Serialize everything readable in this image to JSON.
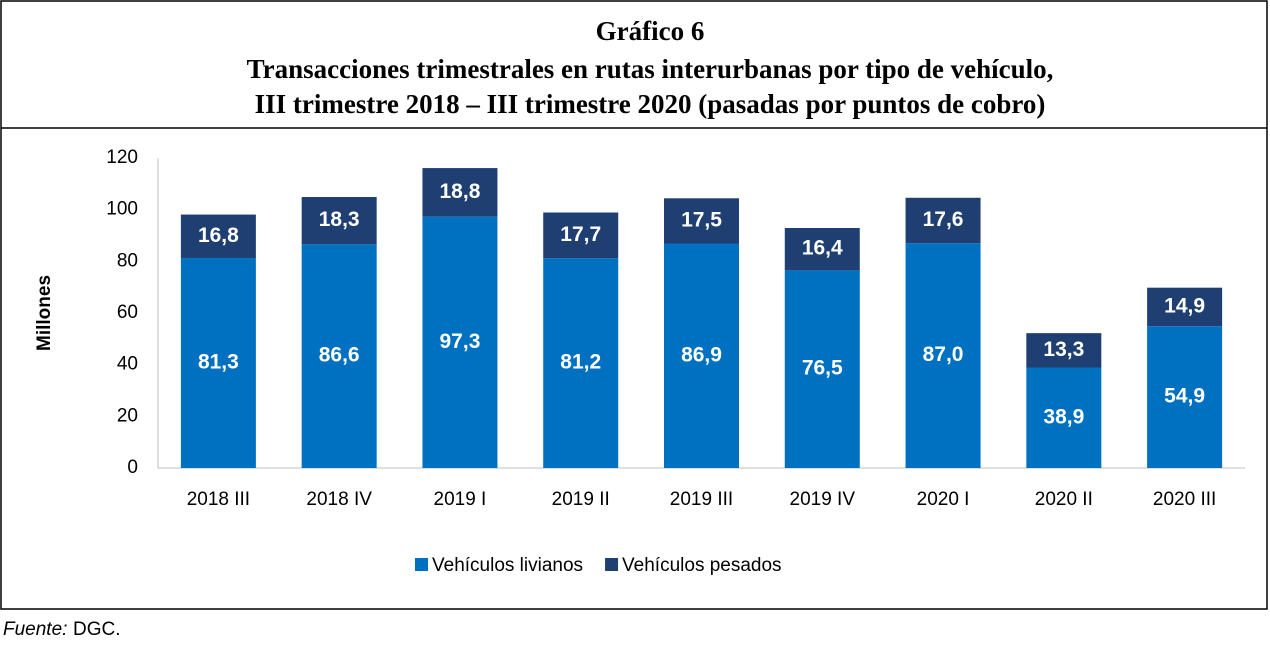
{
  "chart_data": {
    "type": "stacked_bar",
    "title": [
      "Gráfico 6",
      "Transacciones trimestrales en rutas interurbanas por tipo de vehículo,",
      "III trimestre 2018 – III trimestre 2020 (pasadas por puntos de cobro)"
    ],
    "y_label": "Millones",
    "categories": [
      "2018 III",
      "2018 IV",
      "2019 I",
      "2019 II",
      "2019 III",
      "2019 IV",
      "2020 I",
      "2020 II",
      "2020 III"
    ],
    "series": [
      {
        "name": "Vehículos livianos",
        "color": "#0070c0",
        "values": [
          81.3,
          86.6,
          97.3,
          81.2,
          86.9,
          76.5,
          87.0,
          38.9,
          54.9
        ],
        "value_labels": [
          "81,3",
          "86,6",
          "97,3",
          "81,2",
          "86,9",
          "76,5",
          "87,0",
          "38,9",
          "54,9"
        ]
      },
      {
        "name": "Vehículos pesados",
        "color": "#1f3f73",
        "values": [
          16.8,
          18.3,
          18.8,
          17.7,
          17.5,
          16.4,
          17.6,
          13.3,
          14.9
        ],
        "value_labels": [
          "16,8",
          "18,3",
          "18,8",
          "17,7",
          "17,5",
          "16,4",
          "17,6",
          "13,3",
          "14,9"
        ]
      }
    ],
    "ylim": [
      0,
      120
    ],
    "yticks": [
      0,
      20,
      40,
      60,
      80,
      100,
      120
    ],
    "grid": false,
    "legend": "bottom",
    "source_label": "Fuente:",
    "source": "DGC."
  }
}
